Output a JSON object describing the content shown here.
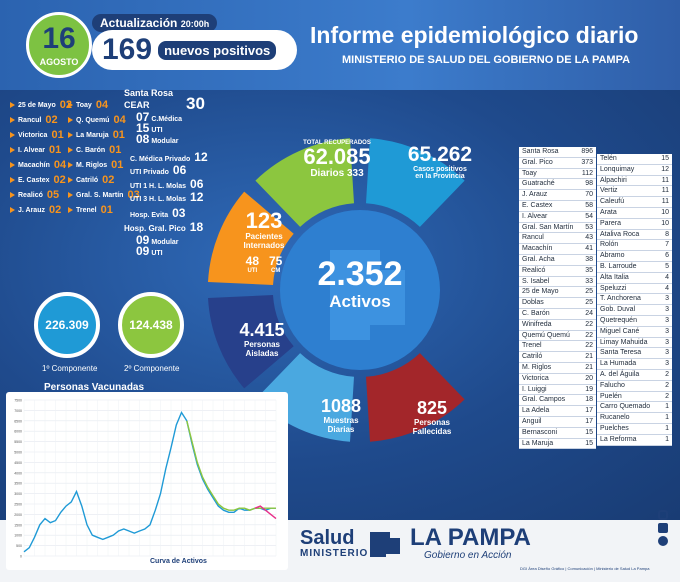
{
  "header": {
    "day": "16",
    "month": "AGOSTO",
    "update_label": "Actualización",
    "update_time": "20:00h",
    "positives_count": "169",
    "positives_label": "nuevos positivos",
    "title": "Informe epidemiológico diario",
    "subtitle": "MINISTERIO DE SALUD DEL GOBIERNO DE LA PAMPA"
  },
  "localities_left": [
    {
      "name": "25 de Mayo",
      "value": "02"
    },
    {
      "name": "Rancul",
      "value": "02"
    },
    {
      "name": "Victorica",
      "value": "01"
    },
    {
      "name": "I. Alvear",
      "value": "01"
    },
    {
      "name": "Macachín",
      "value": "04"
    },
    {
      "name": "E. Castex",
      "value": "02"
    },
    {
      "name": "Realicó",
      "value": "05"
    },
    {
      "name": "J. Arauz",
      "value": "02"
    }
  ],
  "localities_mid": [
    {
      "name": "Toay",
      "value": "04"
    },
    {
      "name": "Q. Quemú",
      "value": "04"
    },
    {
      "name": "La Maruja",
      "value": "01"
    },
    {
      "name": "C. Barón",
      "value": "01"
    },
    {
      "name": "M. Riglos",
      "value": "01"
    },
    {
      "name": "Catriló",
      "value": "02"
    },
    {
      "name": "Gral. S. Martín",
      "value": "03"
    },
    {
      "name": "Trenel",
      "value": "01"
    }
  ],
  "hospitals": {
    "santa_rosa_label": "Santa Rosa",
    "cear_label": "CEAR",
    "cear_total": "30",
    "cear_cmedica": "07",
    "cear_cmedica_label": "C.Médica",
    "cear_uti": "15",
    "cear_uti_label": "UTI",
    "cear_modular": "08",
    "cear_modular_label": "Modular",
    "cmedica_privado_label": "C. Médica Privado",
    "cmedica_privado": "12",
    "uti_privado_label": "UTI Privado",
    "uti_privado": "06",
    "uti1_label": "UTI 1 H. L. Molas",
    "uti1": "06",
    "uti3_label": "UTI 3 H. L. Molas",
    "uti3": "12",
    "evita_label": "Hosp. Evita",
    "evita": "03",
    "pico_label": "Hosp. Gral. Pico",
    "pico": "18",
    "pico_modular": "09",
    "pico_modular_label": "Modular",
    "pico_uti": "09",
    "pico_uti_label": "UTI"
  },
  "vaccines": {
    "first": "226.309",
    "first_label": "1º Componente",
    "second": "124.438",
    "second_label": "2º Componente",
    "title": "Personas Vacunadas"
  },
  "wheel": {
    "recovered_label": "TOTAL RECUPERADOS",
    "recovered": "62.085",
    "daily_label": "Diarios",
    "daily": "333",
    "positives": "65.262",
    "positives_label_1": "Casos positivos",
    "positives_label_2": "en la Provincia",
    "hospitalized": "123",
    "hospitalized_label_1": "Pacientes",
    "hospitalized_label_2": "Internados",
    "uti": "48",
    "uti_label": "UTI",
    "cm": "75",
    "cm_label": "CM",
    "active": "2.352",
    "active_label": "Activos",
    "isolated": "4.415",
    "isolated_label_1": "Personas",
    "isolated_label_2": "Aisladas",
    "samples": "1088",
    "samples_label_1": "Muestras",
    "samples_label_2": "Diarias",
    "deaths": "825",
    "deaths_label_1": "Personas",
    "deaths_label_2": "Fallecidas",
    "colors": {
      "green": "#8cc63f",
      "blue": "#1f9ad6",
      "orange": "#f7941d",
      "navy": "#27408b",
      "light": "#4aa8e0",
      "red": "#a3262a",
      "center": "#2e7fd0"
    }
  },
  "table_left": [
    {
      "name": "Santa Rosa",
      "value": "896"
    },
    {
      "name": "Gral. Pico",
      "value": "373"
    },
    {
      "name": "Toay",
      "value": "112"
    },
    {
      "name": "Guatraché",
      "value": "98"
    },
    {
      "name": "J. Arauz",
      "value": "70"
    },
    {
      "name": "E. Castex",
      "value": "58"
    },
    {
      "name": "I. Alvear",
      "value": "54"
    },
    {
      "name": "Gral. San Martín",
      "value": "53"
    },
    {
      "name": "Rancul",
      "value": "43"
    },
    {
      "name": "Macachín",
      "value": "41"
    },
    {
      "name": "Gral. Acha",
      "value": "38"
    },
    {
      "name": "Realicó",
      "value": "35"
    },
    {
      "name": "S. Isabel",
      "value": "33"
    },
    {
      "name": "25 de Mayo",
      "value": "25"
    },
    {
      "name": "Doblas",
      "value": "25"
    },
    {
      "name": "C. Barón",
      "value": "24"
    },
    {
      "name": "Winifreda",
      "value": "22"
    },
    {
      "name": "Quemú Quemú",
      "value": "22"
    },
    {
      "name": "Trenel",
      "value": "22"
    },
    {
      "name": "Catriló",
      "value": "21"
    },
    {
      "name": "M. Riglos",
      "value": "21"
    },
    {
      "name": "Victorica",
      "value": "20"
    },
    {
      "name": "I. Luiggi",
      "value": "19"
    },
    {
      "name": "Gral. Campos",
      "value": "18"
    },
    {
      "name": "La Adela",
      "value": "17"
    },
    {
      "name": "Anguil",
      "value": "17"
    },
    {
      "name": "Bernasconi",
      "value": "15"
    },
    {
      "name": "La Maruja",
      "value": "15"
    }
  ],
  "table_right": [
    {
      "name": "Telén",
      "value": "15"
    },
    {
      "name": "Lonquimay",
      "value": "12"
    },
    {
      "name": "Alpachiri",
      "value": "11"
    },
    {
      "name": "Vertiz",
      "value": "11"
    },
    {
      "name": "Caleufú",
      "value": "11"
    },
    {
      "name": "Arata",
      "value": "10"
    },
    {
      "name": "Parera",
      "value": "10"
    },
    {
      "name": "Ataliva Roca",
      "value": "8"
    },
    {
      "name": "Rolón",
      "value": "7"
    },
    {
      "name": "Abramo",
      "value": "6"
    },
    {
      "name": "B. Larroude",
      "value": "5"
    },
    {
      "name": "Alta Italia",
      "value": "4"
    },
    {
      "name": "Speluzzi",
      "value": "4"
    },
    {
      "name": "T. Anchorena",
      "value": "3"
    },
    {
      "name": "Gob. Duval",
      "value": "3"
    },
    {
      "name": "Quetrequén",
      "value": "3"
    },
    {
      "name": "Miguel Cané",
      "value": "3"
    },
    {
      "name": "Limay Mahuida",
      "value": "3"
    },
    {
      "name": "Santa Teresa",
      "value": "3"
    },
    {
      "name": "La Humada",
      "value": "3"
    },
    {
      "name": "A. del Águila",
      "value": "2"
    },
    {
      "name": "Falucho",
      "value": "2"
    },
    {
      "name": "Puelén",
      "value": "2"
    },
    {
      "name": "Carro Quemado",
      "value": "1"
    },
    {
      "name": "Rucanelo",
      "value": "1"
    },
    {
      "name": "Puelches",
      "value": "1"
    },
    {
      "name": "La Reforma",
      "value": "1"
    }
  ],
  "chart_data": {
    "type": "line",
    "title": "Curva de Activos",
    "ylim": [
      0,
      7500
    ],
    "y_ticks": [
      "7500",
      "7000",
      "6500",
      "6000",
      "5500",
      "5000",
      "4500",
      "4000",
      "3500",
      "3000",
      "2500",
      "2000",
      "1500",
      "1000",
      "500",
      "0"
    ],
    "series": [
      {
        "name": "",
        "color": "#1f9ad6",
        "values": [
          200,
          400,
          900,
          1500,
          1800,
          1600,
          1700,
          2100,
          2400,
          2600,
          3100,
          2400,
          1500,
          1000,
          900,
          800,
          900,
          1000,
          1200,
          1300,
          1200,
          1100,
          1200,
          1300,
          1500,
          2200,
          3000,
          4200,
          5200,
          6300,
          6900,
          6500,
          5400,
          4400,
          3700,
          3200,
          2800,
          2400,
          2200,
          2100,
          2100,
          2300,
          2200,
          2200,
          2300,
          2300,
          2200,
          2300,
          2300
        ]
      },
      {
        "name": "",
        "color": "#8cc63f",
        "values": [
          null,
          null,
          null,
          null,
          null,
          null,
          null,
          null,
          null,
          null,
          null,
          null,
          null,
          null,
          null,
          null,
          null,
          null,
          null,
          null,
          null,
          null,
          null,
          null,
          null,
          null,
          null,
          null,
          null,
          null,
          null,
          6500,
          5500,
          4500,
          3800,
          3300,
          2900,
          2500,
          2300,
          2200,
          2200,
          2300,
          2300,
          2200,
          2300,
          2300,
          2300,
          2300,
          2300
        ]
      },
      {
        "name": "",
        "color": "#e8308a",
        "values": [
          null,
          null,
          null,
          null,
          null,
          null,
          null,
          null,
          null,
          null,
          null,
          null,
          null,
          null,
          null,
          null,
          null,
          null,
          null,
          null,
          null,
          null,
          null,
          null,
          null,
          null,
          null,
          null,
          null,
          null,
          null,
          null,
          null,
          null,
          null,
          null,
          null,
          null,
          null,
          null,
          null,
          null,
          null,
          null,
          2300,
          2400,
          2200,
          2000,
          1800
        ]
      }
    ]
  },
  "footer": {
    "salud": "Salud",
    "ministerio": "MINISTERIO",
    "la_pampa": "LA PAMPA",
    "gobierno": "Gobierno en Acción",
    "credits": "DGI Área Diseño Gráfico | Comunicación | Ministerio de Salud La Pampa"
  }
}
